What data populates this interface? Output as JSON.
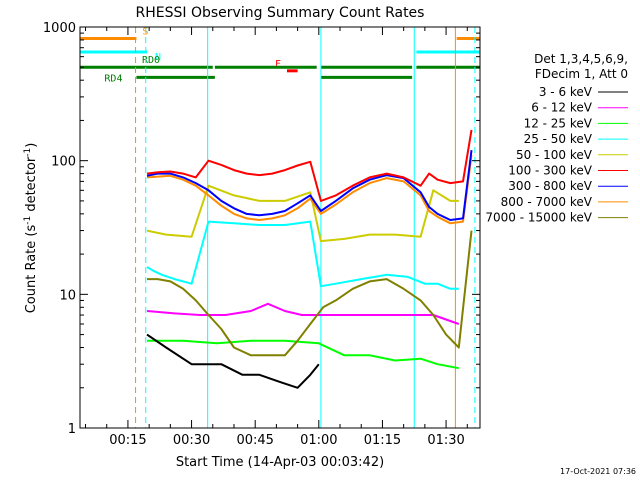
{
  "chart_data": {
    "type": "line",
    "title": "RHESSI Observing Summary Count Rates",
    "xlabel": "Start Time (14-Apr-03 00:03:42)",
    "ylabel_prefix": "Count Rate (s",
    "ylabel_mid": " detector",
    "ylabel_suffix": ")",
    "ylabel_exp": "-1",
    "yscale": "log",
    "ylim": [
      1,
      1000
    ],
    "xlim": [
      3.7,
      98
    ],
    "y_ticks": [
      {
        "v": 1,
        "label": "1"
      },
      {
        "v": 10,
        "label": "10"
      },
      {
        "v": 100,
        "label": "100"
      },
      {
        "v": 1000,
        "label": "1000"
      }
    ],
    "x_ticks": [
      {
        "v": 15,
        "label": "00:15"
      },
      {
        "v": 30,
        "label": "00:30"
      },
      {
        "v": 45,
        "label": "00:45"
      },
      {
        "v": 60,
        "label": "01:00"
      },
      {
        "v": 75,
        "label": "01:15"
      },
      {
        "v": 90,
        "label": "01:30"
      }
    ],
    "legend_header": [
      "Det 1,3,4,5,6,9,",
      "FDecim 1, Att 0"
    ],
    "series": [
      {
        "name": "3 - 6 keV",
        "color": "#000000",
        "x": [
          19.5,
          24,
          30,
          37,
          42,
          46,
          51,
          55,
          58,
          60
        ],
        "y": [
          5,
          4,
          3,
          3,
          2.5,
          2.5,
          2.2,
          2,
          2.5,
          3
        ]
      },
      {
        "name": "6 - 12 keV",
        "color": "#ff00ff",
        "x": [
          19.5,
          26,
          32,
          38,
          44,
          48,
          52,
          56,
          60,
          64,
          70,
          76,
          82,
          87,
          93
        ],
        "y": [
          7.5,
          7.2,
          7,
          7,
          7.5,
          8.5,
          7.5,
          7,
          7,
          7,
          7,
          7,
          7,
          7,
          6
        ]
      },
      {
        "name": "12 - 25 keV",
        "color": "#00ff00",
        "x": [
          19.5,
          28,
          36,
          44,
          52,
          60,
          66,
          72,
          78,
          84,
          88,
          93
        ],
        "y": [
          4.5,
          4.5,
          4.3,
          4.5,
          4.5,
          4.3,
          3.5,
          3.5,
          3.2,
          3.3,
          3,
          2.8
        ]
      },
      {
        "name": "25 - 50 keV",
        "color": "#00ffff",
        "x": [
          19.5,
          21,
          23,
          26,
          30,
          34,
          40,
          46,
          52,
          58,
          60.5,
          64,
          70,
          76,
          81,
          85,
          88,
          91,
          93
        ],
        "y": [
          16,
          15,
          14,
          13,
          12,
          35,
          34,
          33,
          33,
          35,
          11.5,
          12,
          13,
          14,
          13.5,
          12,
          12,
          11,
          11
        ]
      },
      {
        "name": "50 - 100 keV",
        "color": "#cccc00",
        "x": [
          19.5,
          24,
          30,
          34,
          40,
          46,
          52,
          58,
          60.5,
          66,
          72,
          78,
          84,
          87,
          91,
          93
        ],
        "y": [
          30,
          28,
          27,
          65,
          55,
          50,
          50,
          58,
          25,
          26,
          28,
          28,
          27,
          60,
          50,
          50
        ]
      },
      {
        "name": "100 - 300 keV",
        "color": "#ff0000",
        "x": [
          19.5,
          22,
          25,
          28,
          31,
          34,
          37,
          40,
          43,
          46,
          49,
          52,
          55,
          58,
          60.5,
          64,
          68,
          72,
          76,
          80,
          84,
          86,
          88,
          91,
          94,
          96
        ],
        "y": [
          80,
          82,
          83,
          80,
          75,
          100,
          93,
          85,
          80,
          78,
          80,
          85,
          92,
          98,
          50,
          55,
          65,
          75,
          80,
          75,
          65,
          80,
          72,
          68,
          70,
          170
        ]
      },
      {
        "name": "300 - 800 keV",
        "color": "#0000ff",
        "x": [
          19.5,
          22,
          25,
          28,
          31,
          34,
          37,
          40,
          43,
          46,
          49,
          52,
          55,
          58,
          60.5,
          64,
          68,
          72,
          76,
          80,
          84,
          86,
          88,
          91,
          94,
          96
        ],
        "y": [
          77,
          80,
          80,
          75,
          68,
          60,
          50,
          44,
          40,
          39,
          40,
          42,
          48,
          55,
          42,
          50,
          62,
          72,
          78,
          74,
          58,
          45,
          40,
          36,
          37,
          120
        ]
      },
      {
        "name": "800 - 7000 keV",
        "color": "#ff8c00",
        "x": [
          19.5,
          22,
          25,
          28,
          31,
          34,
          37,
          40,
          43,
          46,
          49,
          52,
          55,
          58,
          60.5,
          64,
          68,
          72,
          76,
          80,
          84,
          86,
          88,
          91,
          94,
          96
        ],
        "y": [
          75,
          76,
          77,
          72,
          65,
          55,
          46,
          40,
          37,
          36,
          37,
          39,
          44,
          52,
          40,
          47,
          58,
          68,
          74,
          70,
          55,
          42,
          38,
          34,
          35,
          110
        ]
      },
      {
        "name": "7000 - 15000 keV",
        "color": "#808000",
        "x": [
          19.5,
          22,
          25,
          28,
          31,
          34,
          37,
          40,
          44,
          48,
          52,
          55,
          58,
          61,
          64,
          68,
          72,
          76,
          80,
          84,
          87,
          90,
          93,
          96
        ],
        "y": [
          13,
          13,
          12.5,
          11,
          9,
          7,
          5.5,
          4,
          3.5,
          3.5,
          3.5,
          4.5,
          6,
          8,
          9,
          11,
          12.5,
          13,
          11,
          9,
          7,
          5,
          4,
          30
        ]
      }
    ],
    "mode_bars": [
      {
        "label": "S",
        "color": "#ff8c00",
        "y": 820,
        "segments": [
          [
            3.7,
            17
          ],
          [
            92.5,
            98
          ]
        ]
      },
      {
        "label": "N",
        "color": "#00ffff",
        "y": 650,
        "segments": [
          [
            3.7,
            19.5
          ],
          [
            83,
            98
          ]
        ]
      },
      {
        "label": "F",
        "color": "#ff0000",
        "y": 470,
        "segments": [
          [
            52.5,
            55
          ]
        ]
      },
      {
        "label": "RD0",
        "color": "#008000",
        "y": 500,
        "segments": [
          [
            3.7,
            35
          ],
          [
            35.5,
            59.5
          ],
          [
            60.5,
            82
          ],
          [
            83,
            98
          ]
        ]
      },
      {
        "label": "RD4",
        "color": "#008000",
        "y": 420,
        "segments": [
          [
            17,
            35.5
          ],
          [
            60.5,
            82
          ]
        ]
      }
    ],
    "vlines": [
      {
        "x": 16.8,
        "color": "#ff8c00",
        "dash": true
      },
      {
        "x": 19.2,
        "color": "#00ffff",
        "dash": true
      },
      {
        "x": 33.8,
        "color": "#00ffff",
        "dash": false
      },
      {
        "x": 60.5,
        "color": "#00ffff",
        "dash": false
      },
      {
        "x": 82.5,
        "color": "#00ffff",
        "dash": false
      },
      {
        "x": 92.2,
        "color": "#ff8c00",
        "dash": false
      },
      {
        "x": 96.8,
        "color": "#00ffff",
        "dash": true
      }
    ],
    "grid": false,
    "legend_position": "right"
  },
  "footer": {
    "timestamp": "17-Oct-2021 07:36"
  }
}
